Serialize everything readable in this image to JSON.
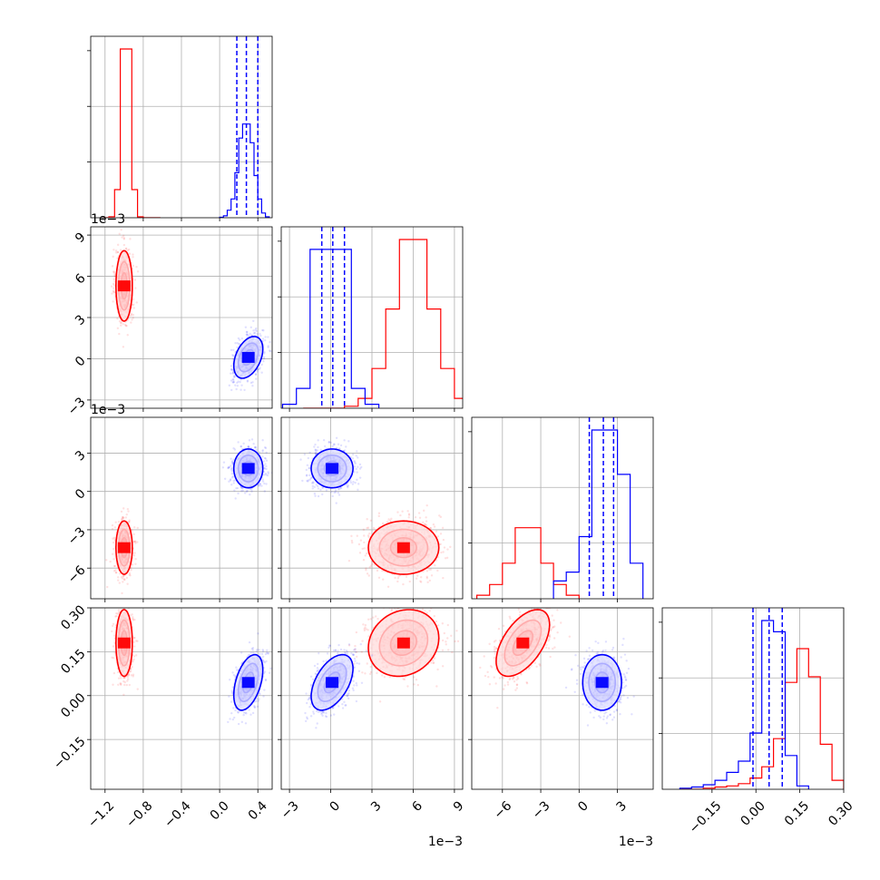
{
  "chart_data": {
    "type": "corner",
    "title": "",
    "parameters": [
      {
        "range": [
          -1.35,
          0.55
        ],
        "ticks": [
          -1.2,
          -0.8,
          -0.4,
          0.0,
          0.4
        ],
        "tick_labels": [
          "−1.2",
          "−0.8",
          "−0.4",
          "0.0",
          "0.4"
        ],
        "offset_text": ""
      },
      {
        "range": [
          -3.6,
          9.6
        ],
        "ticks": [
          -3,
          0,
          3,
          6,
          9
        ],
        "tick_labels": [
          "−3",
          "0",
          "3",
          "6",
          "9"
        ],
        "offset_text": "1e−3"
      },
      {
        "range": [
          -8.4,
          5.8
        ],
        "ticks": [
          -6,
          -3,
          0,
          3
        ],
        "tick_labels": [
          "−6",
          "−3",
          "0",
          "3"
        ],
        "offset_text": "1e−3"
      },
      {
        "range": [
          -0.32,
          0.3
        ],
        "ticks": [
          -0.15,
          0.0,
          0.15,
          0.3
        ],
        "tick_labels": [
          "−0.15",
          "0.00",
          "0.15",
          "0.30"
        ],
        "offset_text": ""
      }
    ],
    "series": [
      {
        "color": "#ff0000",
        "quantiles": null,
        "means": [
          -1.0,
          5.3,
          -4.4,
          0.18
        ],
        "stds": [
          0.045,
          1.35,
          1.1,
          0.06
        ],
        "correlations": [
          [
            0,
            1,
            0.0
          ],
          [
            0,
            2,
            0.0
          ],
          [
            0,
            3,
            0.0
          ],
          [
            1,
            2,
            0.0
          ],
          [
            1,
            3,
            0.15
          ],
          [
            2,
            3,
            0.55
          ]
        ],
        "histograms": [
          {
            "bins": [
              -1.22,
              -1.16,
              -1.1,
              -1.04,
              -0.98,
              -0.92,
              -0.86,
              -0.8,
              -0.74,
              -0.68,
              -0.62
            ],
            "counts": [
              0.04,
              1,
              30,
              180,
              180,
              30,
              1,
              0,
              0,
              0
            ]
          },
          {
            "bins": [
              -2.0,
              -1.0,
              0.0,
              1.0,
              2.0,
              3.0,
              4.0,
              5.0,
              6.0,
              7.0,
              8.0,
              9.0,
              10.0
            ],
            "counts": [
              0,
              0,
              0,
              1,
              5,
              20,
              50,
              85,
              85,
              50,
              20,
              5
            ]
          },
          {
            "bins": [
              -8.0,
              -7.0,
              -6.0,
              -5.0,
              -4.0,
              -3.0,
              -2.0,
              -1.0,
              0.0
            ],
            "counts": [
              2,
              8,
              20,
              40,
              40,
              20,
              8,
              2
            ]
          },
          {
            "bins": [
              -0.26,
              -0.22,
              -0.18,
              -0.14,
              -0.1,
              -0.06,
              -0.02,
              0.02,
              0.06,
              0.1,
              0.14,
              0.18,
              0.22,
              0.26,
              0.3
            ],
            "counts": [
              0,
              0,
              1,
              2,
              3,
              5,
              10,
              20,
              45,
              95,
              125,
              100,
              40,
              8
            ]
          }
        ]
      },
      {
        "color": "#0000ff",
        "quantiles": [
          [
            0.18,
            0.28,
            0.4
          ],
          [
            -0.65,
            0.15,
            1.0
          ],
          [
            0.8,
            1.9,
            2.7
          ],
          [
            -0.01,
            0.045,
            0.09
          ]
        ],
        "means": [
          0.3,
          0.1,
          1.8,
          0.045
        ],
        "stds": [
          0.08,
          0.8,
          0.8,
          0.05
        ],
        "correlations": [
          [
            0,
            1,
            0.4
          ],
          [
            0,
            2,
            0.0
          ],
          [
            0,
            3,
            0.45
          ],
          [
            1,
            2,
            0.0
          ],
          [
            1,
            3,
            0.5
          ],
          [
            2,
            3,
            0.0
          ]
        ],
        "histograms": [
          {
            "bins": [
              0.0,
              0.04,
              0.08,
              0.12,
              0.16,
              0.2,
              0.24,
              0.28,
              0.32,
              0.36,
              0.4,
              0.44,
              0.48,
              0.52
            ],
            "counts": [
              0.5,
              2,
              8,
              20,
              48,
              85,
              100,
              100,
              80,
              45,
              20,
              5,
              1
            ]
          },
          {
            "bins": [
              -3.5,
              -2.5,
              -1.5,
              -0.5,
              0.5,
              1.5,
              2.5,
              3.5
            ],
            "counts": [
              2,
              10,
              80,
              80,
              80,
              10,
              2
            ]
          },
          {
            "bins": [
              -2.0,
              -1.0,
              0.0,
              1.0,
              2.0,
              3.0,
              4.0,
              5.0
            ],
            "counts": [
              10,
              15,
              35,
              95,
              95,
              70,
              20
            ]
          },
          {
            "bins": [
              -0.26,
              -0.22,
              -0.18,
              -0.14,
              -0.1,
              -0.06,
              -0.02,
              0.02,
              0.06,
              0.1,
              0.14,
              0.18
            ],
            "counts": [
              1,
              2,
              4,
              8,
              15,
              25,
              50,
              150,
              140,
              30,
              3
            ]
          }
        ]
      }
    ]
  }
}
